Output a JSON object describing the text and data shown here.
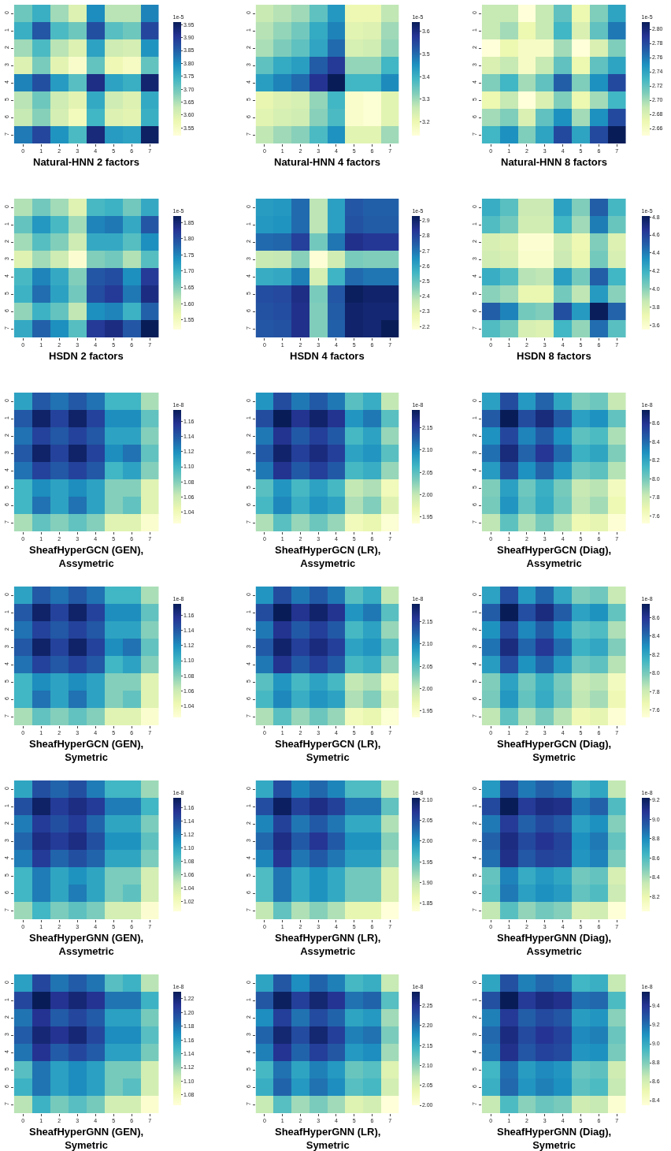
{
  "chart_data": [
    {
      "type": "heatmap",
      "title": "Natural-HNN 2 factors",
      "clabel": "1e-5",
      "categories": [
        "0",
        "1",
        "2",
        "3",
        "4",
        "5",
        "6",
        "7"
      ],
      "y_categories": [
        "0",
        "1",
        "2",
        "3",
        "4",
        "5",
        "6",
        "7"
      ],
      "clim": [
        3.52,
        3.96
      ],
      "cticks": [
        3.55,
        {
          "value": 3.6,
          "label": "3.60"
        },
        3.65,
        {
          "value": 3.7,
          "label": "3.70"
        },
        3.75,
        {
          "value": 3.8,
          "label": "3.80"
        },
        3.85,
        {
          "value": 3.9,
          "label": "3.90"
        },
        3.95
      ],
      "cells": [
        [
          3.7,
          3.75,
          3.66,
          3.6,
          3.8,
          3.64,
          3.64,
          3.81
        ],
        [
          3.75,
          3.86,
          3.73,
          3.7,
          3.87,
          3.72,
          3.7,
          3.88
        ],
        [
          3.66,
          3.73,
          3.64,
          3.6,
          3.77,
          3.62,
          3.61,
          3.79
        ],
        [
          3.6,
          3.69,
          3.59,
          3.54,
          3.71,
          3.57,
          3.55,
          3.71
        ],
        [
          3.81,
          3.87,
          3.78,
          3.72,
          3.92,
          3.77,
          3.75,
          3.94
        ],
        [
          3.64,
          3.7,
          3.62,
          3.59,
          3.76,
          3.62,
          3.6,
          3.76
        ],
        [
          3.63,
          3.68,
          3.61,
          3.56,
          3.74,
          3.6,
          3.59,
          3.75
        ],
        [
          3.82,
          3.88,
          3.79,
          3.73,
          3.93,
          3.78,
          3.77,
          3.95
        ]
      ]
    },
    {
      "type": "heatmap",
      "title": "Natural-HNN 4 factors",
      "clabel": "1e-5",
      "categories": [
        "0",
        "1",
        "2",
        "3",
        "4",
        "5",
        "6",
        "7"
      ],
      "y_categories": [
        "0",
        "1",
        "2",
        "3",
        "4",
        "5",
        "6",
        "7"
      ],
      "clim": [
        3.14,
        3.64
      ],
      "cticks": [
        3.2,
        3.3,
        3.4,
        3.5,
        3.6
      ],
      "cells": [
        [
          3.26,
          3.28,
          3.3,
          3.36,
          3.44,
          3.2,
          3.2,
          3.27
        ],
        [
          3.28,
          3.31,
          3.34,
          3.41,
          3.47,
          3.22,
          3.23,
          3.3
        ],
        [
          3.29,
          3.33,
          3.36,
          3.42,
          3.5,
          3.24,
          3.25,
          3.31
        ],
        [
          3.36,
          3.41,
          3.43,
          3.52,
          3.57,
          3.31,
          3.31,
          3.39
        ],
        [
          3.43,
          3.47,
          3.5,
          3.58,
          3.64,
          3.39,
          3.39,
          3.46
        ],
        [
          3.21,
          3.23,
          3.24,
          3.31,
          3.39,
          3.16,
          3.15,
          3.22
        ],
        [
          3.22,
          3.24,
          3.25,
          3.32,
          3.38,
          3.16,
          3.15,
          3.22
        ],
        [
          3.27,
          3.3,
          3.32,
          3.38,
          3.45,
          3.22,
          3.22,
          3.3
        ]
      ]
    },
    {
      "type": "heatmap",
      "title": "Natural-HNN 8 factors",
      "clabel": "1e-5",
      "categories": [
        "0",
        "1",
        "2",
        "3",
        "4",
        "5",
        "6",
        "7"
      ],
      "y_categories": [
        "0",
        "1",
        "2",
        "3",
        "4",
        "5",
        "6",
        "7"
      ],
      "clim": [
        2.65,
        2.81
      ],
      "cticks": [
        2.66,
        2.68,
        {
          "value": 2.7,
          "label": "2.70"
        },
        2.72,
        2.74,
        2.76,
        2.78,
        {
          "value": 2.8,
          "label": "2.80"
        }
      ],
      "cells": [
        [
          2.69,
          2.69,
          2.65,
          2.69,
          2.72,
          2.67,
          2.71,
          2.74
        ],
        [
          2.69,
          2.7,
          2.67,
          2.69,
          2.73,
          2.68,
          2.72,
          2.76
        ],
        [
          2.65,
          2.67,
          2.66,
          2.66,
          2.7,
          2.65,
          2.68,
          2.71
        ],
        [
          2.68,
          2.69,
          2.66,
          2.69,
          2.72,
          2.67,
          2.72,
          2.74
        ],
        [
          2.71,
          2.73,
          2.7,
          2.72,
          2.77,
          2.71,
          2.75,
          2.78
        ],
        [
          2.67,
          2.69,
          2.65,
          2.68,
          2.71,
          2.67,
          2.7,
          2.73
        ],
        [
          2.7,
          2.71,
          2.68,
          2.72,
          2.75,
          2.7,
          2.75,
          2.78
        ],
        [
          2.73,
          2.75,
          2.71,
          2.74,
          2.78,
          2.74,
          2.78,
          2.81
        ]
      ]
    },
    {
      "type": "heatmap",
      "title": "HSDN 2 factors",
      "clabel": "1e-5",
      "categories": [
        "0",
        "1",
        "2",
        "3",
        "4",
        "5",
        "6",
        "7"
      ],
      "y_categories": [
        "0",
        "1",
        "2",
        "3",
        "4",
        "5",
        "6",
        "7"
      ],
      "clim": [
        1.52,
        1.87
      ],
      "cticks": [
        1.55,
        {
          "value": 1.6,
          "label": "1.60"
        },
        1.65,
        {
          "value": 1.7,
          "label": "1.70"
        },
        1.75,
        {
          "value": 1.8,
          "label": "1.80"
        },
        1.85
      ],
      "cells": [
        [
          1.62,
          1.66,
          1.63,
          1.58,
          1.69,
          1.7,
          1.66,
          1.71
        ],
        [
          1.67,
          1.73,
          1.69,
          1.63,
          1.75,
          1.76,
          1.71,
          1.79
        ],
        [
          1.63,
          1.68,
          1.65,
          1.6,
          1.71,
          1.71,
          1.68,
          1.74
        ],
        [
          1.58,
          1.63,
          1.6,
          1.53,
          1.65,
          1.66,
          1.62,
          1.68
        ],
        [
          1.69,
          1.75,
          1.71,
          1.65,
          1.79,
          1.8,
          1.74,
          1.82
        ],
        [
          1.7,
          1.77,
          1.72,
          1.66,
          1.8,
          1.82,
          1.76,
          1.84
        ],
        [
          1.64,
          1.7,
          1.67,
          1.61,
          1.74,
          1.75,
          1.7,
          1.78
        ],
        [
          1.71,
          1.78,
          1.74,
          1.68,
          1.82,
          1.84,
          1.79,
          1.87
        ]
      ]
    },
    {
      "type": "heatmap",
      "title": "HSDN 4 factors",
      "clabel": "1e-5",
      "categories": [
        "0",
        "1",
        "2",
        "3",
        "4",
        "5",
        "6",
        "7"
      ],
      "y_categories": [
        "0",
        "1",
        "2",
        "3",
        "4",
        "5",
        "6",
        "7"
      ],
      "clim": [
        2.18,
        2.93
      ],
      "cticks": [
        2.2,
        2.3,
        2.4,
        2.5,
        2.6,
        2.7,
        2.8,
        2.9
      ],
      "cells": [
        [
          2.62,
          2.63,
          2.72,
          2.38,
          2.61,
          2.76,
          2.74,
          2.74
        ],
        [
          2.63,
          2.64,
          2.72,
          2.38,
          2.61,
          2.77,
          2.75,
          2.75
        ],
        [
          2.72,
          2.73,
          2.81,
          2.48,
          2.7,
          2.85,
          2.83,
          2.83
        ],
        [
          2.36,
          2.37,
          2.45,
          2.19,
          2.34,
          2.47,
          2.46,
          2.46
        ],
        [
          2.58,
          2.59,
          2.68,
          2.33,
          2.56,
          2.72,
          2.7,
          2.7
        ],
        [
          2.78,
          2.79,
          2.86,
          2.47,
          2.76,
          2.92,
          2.9,
          2.9
        ],
        [
          2.77,
          2.78,
          2.85,
          2.46,
          2.75,
          2.9,
          2.89,
          2.89
        ],
        [
          2.76,
          2.77,
          2.85,
          2.46,
          2.74,
          2.9,
          2.89,
          2.93
        ]
      ]
    },
    {
      "type": "heatmap",
      "title": "HSDN 8 factors",
      "clabel": "1e-5",
      "categories": [
        "0",
        "1",
        "2",
        "3",
        "4",
        "5",
        "6",
        "7"
      ],
      "y_categories": [
        "0",
        "1",
        "2",
        "3",
        "4",
        "5",
        "6",
        "7"
      ],
      "clim": [
        3.55,
        4.81
      ],
      "cticks": [
        3.6,
        3.8,
        {
          "value": 4.0,
          "label": "4.0"
        },
        4.2,
        4.4,
        4.6,
        4.8
      ],
      "cells": [
        [
          4.22,
          4.12,
          3.85,
          3.85,
          4.27,
          4.02,
          4.5,
          4.17
        ],
        [
          4.14,
          4.05,
          3.82,
          3.82,
          4.18,
          3.95,
          4.4,
          4.08
        ],
        [
          3.8,
          3.78,
          3.58,
          3.58,
          3.82,
          3.7,
          4.02,
          3.78
        ],
        [
          3.82,
          3.8,
          3.6,
          3.6,
          3.85,
          3.72,
          4.05,
          3.8
        ],
        [
          4.22,
          4.14,
          3.9,
          3.88,
          4.28,
          4.05,
          4.5,
          4.18
        ],
        [
          4.0,
          3.95,
          3.72,
          3.72,
          4.05,
          3.88,
          4.3,
          4.0
        ],
        [
          4.5,
          4.38,
          4.05,
          4.02,
          4.55,
          4.3,
          4.8,
          4.48
        ],
        [
          4.14,
          4.06,
          3.8,
          3.78,
          4.18,
          3.98,
          4.45,
          4.12
        ]
      ]
    },
    {
      "type": "heatmap",
      "title": "SheafHyperGCN (GEN),\nAssymetric",
      "clabel": "1e-8",
      "categories": [
        "0",
        "1",
        "2",
        "3",
        "4",
        "5",
        "6",
        "7"
      ],
      "y_categories": [
        "0",
        "1",
        "2",
        "3",
        "4",
        "5",
        "6",
        "7"
      ],
      "clim": [
        1.025,
        1.175
      ],
      "cticks": [
        1.04,
        1.06,
        1.08,
        {
          "value": 1.1,
          "label": "1.10"
        },
        1.12,
        1.14,
        1.16
      ],
      "cells": [
        [
          1.11,
          1.14,
          1.13,
          1.14,
          1.13,
          1.1,
          1.1,
          1.07
        ],
        [
          1.14,
          1.17,
          1.15,
          1.17,
          1.15,
          1.12,
          1.12,
          1.09
        ],
        [
          1.13,
          1.15,
          1.14,
          1.15,
          1.14,
          1.11,
          1.11,
          1.08
        ],
        [
          1.14,
          1.17,
          1.15,
          1.17,
          1.15,
          1.12,
          1.13,
          1.09
        ],
        [
          1.13,
          1.15,
          1.14,
          1.15,
          1.14,
          1.1,
          1.11,
          1.08
        ],
        [
          1.1,
          1.12,
          1.11,
          1.12,
          1.11,
          1.08,
          1.08,
          1.05
        ],
        [
          1.1,
          1.13,
          1.11,
          1.13,
          1.11,
          1.08,
          1.09,
          1.05
        ],
        [
          1.07,
          1.09,
          1.08,
          1.09,
          1.08,
          1.05,
          1.05,
          1.03
        ]
      ]
    },
    {
      "type": "heatmap",
      "title": "SheafHyperGCN (LR),\nAssymetric",
      "clabel": "1e-8",
      "categories": [
        "0",
        "1",
        "2",
        "3",
        "4",
        "5",
        "6",
        "7"
      ],
      "y_categories": [
        "0",
        "1",
        "2",
        "3",
        "4",
        "5",
        "6",
        "7"
      ],
      "clim": [
        1.935,
        2.19
      ],
      "cticks": [
        1.95,
        {
          "value": 2.0,
          "label": "2.00"
        },
        2.05,
        {
          "value": 2.1,
          "label": "2.10"
        },
        2.15
      ],
      "cells": [
        [
          2.09,
          2.14,
          2.11,
          2.13,
          2.11,
          2.05,
          2.07,
          2.0
        ],
        [
          2.14,
          2.19,
          2.16,
          2.18,
          2.16,
          2.09,
          2.11,
          2.05
        ],
        [
          2.11,
          2.16,
          2.13,
          2.15,
          2.13,
          2.06,
          2.08,
          2.02
        ],
        [
          2.13,
          2.18,
          2.15,
          2.17,
          2.15,
          2.08,
          2.09,
          2.05
        ],
        [
          2.11,
          2.16,
          2.13,
          2.15,
          2.13,
          2.06,
          2.07,
          2.02
        ],
        [
          2.05,
          2.09,
          2.06,
          2.08,
          2.06,
          2.0,
          2.01,
          1.96
        ],
        [
          2.06,
          2.1,
          2.07,
          2.09,
          2.08,
          2.01,
          2.03,
          1.98
        ],
        [
          2.01,
          2.05,
          2.02,
          2.04,
          2.02,
          1.96,
          1.97,
          1.94
        ]
      ]
    },
    {
      "type": "heatmap",
      "title": "SheafHyperGCN (Diag),\nAssymetric",
      "clabel": "1e-8",
      "categories": [
        "0",
        "1",
        "2",
        "3",
        "4",
        "5",
        "6",
        "7"
      ],
      "y_categories": [
        "0",
        "1",
        "2",
        "3",
        "4",
        "5",
        "6",
        "7"
      ],
      "clim": [
        7.52,
        8.74
      ],
      "cticks": [
        7.6,
        7.8,
        {
          "value": 8.0,
          "label": "8.0"
        },
        8.2,
        8.4,
        8.6
      ],
      "cells": [
        [
          8.22,
          8.5,
          8.25,
          8.42,
          8.2,
          7.98,
          8.02,
          7.82
        ],
        [
          8.45,
          8.74,
          8.5,
          8.65,
          8.45,
          8.22,
          8.28,
          8.05
        ],
        [
          8.28,
          8.52,
          8.32,
          8.45,
          8.28,
          8.06,
          8.1,
          7.88
        ],
        [
          8.38,
          8.65,
          8.42,
          8.58,
          8.4,
          8.15,
          8.2,
          7.98
        ],
        [
          8.24,
          8.5,
          8.28,
          8.42,
          8.25,
          8.02,
          8.06,
          7.86
        ],
        [
          7.98,
          8.22,
          8.02,
          8.16,
          8.0,
          7.82,
          7.85,
          7.62
        ],
        [
          8.0,
          8.26,
          8.05,
          8.18,
          8.02,
          7.84,
          7.9,
          7.66
        ],
        [
          7.84,
          8.06,
          7.88,
          8.0,
          7.86,
          7.66,
          7.7,
          7.54
        ]
      ]
    },
    {
      "type": "heatmap",
      "title": "SheafHyperGCN (GEN),\nSymetric",
      "clabel": "1e-8",
      "categories": [
        "0",
        "1",
        "2",
        "3",
        "4",
        "5",
        "6",
        "7"
      ],
      "y_categories": [
        "0",
        "1",
        "2",
        "3",
        "4",
        "5",
        "6",
        "7"
      ],
      "clim": [
        1.025,
        1.175
      ],
      "cticks": [
        1.04,
        1.06,
        1.08,
        {
          "value": 1.1,
          "label": "1.10"
        },
        1.12,
        1.14,
        1.16
      ],
      "cells": [
        [
          1.11,
          1.14,
          1.13,
          1.14,
          1.13,
          1.1,
          1.1,
          1.07
        ],
        [
          1.14,
          1.17,
          1.15,
          1.17,
          1.15,
          1.12,
          1.12,
          1.09
        ],
        [
          1.13,
          1.15,
          1.14,
          1.15,
          1.14,
          1.11,
          1.11,
          1.08
        ],
        [
          1.14,
          1.17,
          1.15,
          1.17,
          1.15,
          1.12,
          1.13,
          1.09
        ],
        [
          1.13,
          1.15,
          1.14,
          1.15,
          1.14,
          1.1,
          1.11,
          1.08
        ],
        [
          1.1,
          1.12,
          1.11,
          1.12,
          1.11,
          1.08,
          1.08,
          1.05
        ],
        [
          1.1,
          1.13,
          1.11,
          1.13,
          1.11,
          1.08,
          1.09,
          1.05
        ],
        [
          1.07,
          1.09,
          1.08,
          1.09,
          1.08,
          1.05,
          1.05,
          1.03
        ]
      ]
    },
    {
      "type": "heatmap",
      "title": "SheafHyperGCN (LR),\nSymetric",
      "clabel": "1e-8",
      "categories": [
        "0",
        "1",
        "2",
        "3",
        "4",
        "5",
        "6",
        "7"
      ],
      "y_categories": [
        "0",
        "1",
        "2",
        "3",
        "4",
        "5",
        "6",
        "7"
      ],
      "clim": [
        1.935,
        2.19
      ],
      "cticks": [
        1.95,
        {
          "value": 2.0,
          "label": "2.00"
        },
        2.05,
        {
          "value": 2.1,
          "label": "2.10"
        },
        2.15
      ],
      "cells": [
        [
          2.09,
          2.14,
          2.11,
          2.13,
          2.11,
          2.05,
          2.07,
          2.0
        ],
        [
          2.14,
          2.19,
          2.16,
          2.18,
          2.16,
          2.09,
          2.11,
          2.05
        ],
        [
          2.11,
          2.16,
          2.13,
          2.15,
          2.13,
          2.06,
          2.08,
          2.02
        ],
        [
          2.13,
          2.18,
          2.15,
          2.17,
          2.15,
          2.08,
          2.09,
          2.05
        ],
        [
          2.11,
          2.16,
          2.13,
          2.15,
          2.13,
          2.06,
          2.07,
          2.02
        ],
        [
          2.05,
          2.09,
          2.06,
          2.08,
          2.06,
          2.0,
          2.01,
          1.96
        ],
        [
          2.06,
          2.1,
          2.07,
          2.09,
          2.08,
          2.01,
          2.03,
          1.98
        ],
        [
          2.01,
          2.05,
          2.02,
          2.04,
          2.02,
          1.96,
          1.97,
          1.94
        ]
      ]
    },
    {
      "type": "heatmap",
      "title": "SheafHyperGCN (Diag),\nSymetric",
      "clabel": "1e-8",
      "categories": [
        "0",
        "1",
        "2",
        "3",
        "4",
        "5",
        "6",
        "7"
      ],
      "y_categories": [
        "0",
        "1",
        "2",
        "3",
        "4",
        "5",
        "6",
        "7"
      ],
      "clim": [
        7.52,
        8.75
      ],
      "cticks": [
        7.6,
        7.8,
        {
          "value": 8.0,
          "label": "8.0"
        },
        8.2,
        8.4,
        8.6
      ],
      "cells": [
        [
          8.22,
          8.5,
          8.25,
          8.42,
          8.2,
          7.98,
          8.02,
          7.82
        ],
        [
          8.45,
          8.75,
          8.5,
          8.65,
          8.45,
          8.22,
          8.28,
          8.05
        ],
        [
          8.28,
          8.52,
          8.32,
          8.45,
          8.28,
          8.06,
          8.1,
          7.88
        ],
        [
          8.38,
          8.65,
          8.42,
          8.58,
          8.4,
          8.15,
          8.2,
          7.98
        ],
        [
          8.24,
          8.5,
          8.28,
          8.42,
          8.25,
          8.02,
          8.06,
          7.86
        ],
        [
          7.98,
          8.22,
          8.02,
          8.16,
          8.0,
          7.82,
          7.85,
          7.62
        ],
        [
          8.0,
          8.26,
          8.05,
          8.18,
          8.02,
          7.84,
          7.9,
          7.66
        ],
        [
          7.84,
          8.06,
          7.88,
          8.0,
          7.86,
          7.66,
          7.7,
          7.54
        ]
      ]
    },
    {
      "type": "heatmap",
      "title": "SheafHyperGNN (GEN),\nAssymetric",
      "clabel": "1e-8",
      "categories": [
        "0",
        "1",
        "2",
        "3",
        "4",
        "5",
        "6",
        "7"
      ],
      "y_categories": [
        "0",
        "1",
        "2",
        "3",
        "4",
        "5",
        "6",
        "7"
      ],
      "clim": [
        1.005,
        1.175
      ],
      "cticks": [
        1.02,
        1.04,
        1.06,
        1.08,
        {
          "value": 1.1,
          "label": "1.10"
        },
        1.12,
        1.14,
        1.16
      ],
      "cells": [
        [
          1.1,
          1.14,
          1.13,
          1.14,
          1.12,
          1.09,
          1.09,
          1.06
        ],
        [
          1.14,
          1.17,
          1.15,
          1.16,
          1.15,
          1.12,
          1.12,
          1.09
        ],
        [
          1.12,
          1.15,
          1.14,
          1.15,
          1.13,
          1.1,
          1.1,
          1.07
        ],
        [
          1.13,
          1.16,
          1.15,
          1.16,
          1.14,
          1.11,
          1.11,
          1.08
        ],
        [
          1.12,
          1.15,
          1.13,
          1.14,
          1.13,
          1.1,
          1.1,
          1.07
        ],
        [
          1.09,
          1.12,
          1.1,
          1.11,
          1.1,
          1.07,
          1.07,
          1.04
        ],
        [
          1.09,
          1.12,
          1.1,
          1.12,
          1.1,
          1.07,
          1.08,
          1.04
        ],
        [
          1.06,
          1.09,
          1.07,
          1.08,
          1.07,
          1.04,
          1.04,
          1.01
        ]
      ]
    },
    {
      "type": "heatmap",
      "title": "SheafHyperGNN (LR),\nAssymetric",
      "clabel": "1e-8",
      "categories": [
        "0",
        "1",
        "2",
        "3",
        "4",
        "5",
        "6",
        "7"
      ],
      "y_categories": [
        "0",
        "1",
        "2",
        "3",
        "4",
        "5",
        "6",
        "7"
      ],
      "clim": [
        1.83,
        2.105
      ],
      "cticks": [
        1.85,
        {
          "value": 1.9,
          "label": "1.90"
        },
        1.95,
        {
          "value": 2.0,
          "label": "2.00"
        },
        2.05,
        {
          "value": 2.1,
          "label": "2.10"
        }
      ],
      "cells": [
        [
          1.98,
          2.05,
          2.01,
          2.03,
          2.01,
          1.96,
          1.96,
          1.9
        ],
        [
          2.05,
          2.1,
          2.06,
          2.08,
          2.06,
          2.02,
          2.02,
          1.95
        ],
        [
          2.01,
          2.06,
          2.02,
          2.04,
          2.02,
          1.98,
          1.98,
          1.91
        ],
        [
          2.03,
          2.08,
          2.04,
          2.07,
          2.04,
          2.0,
          2.0,
          1.93
        ],
        [
          2.01,
          2.07,
          2.02,
          2.04,
          2.02,
          1.99,
          1.99,
          1.92
        ],
        [
          1.96,
          2.02,
          1.98,
          2.0,
          1.98,
          1.94,
          1.94,
          1.88
        ],
        [
          1.96,
          2.02,
          1.98,
          2.0,
          1.98,
          1.94,
          1.94,
          1.88
        ],
        [
          1.9,
          1.95,
          1.91,
          1.93,
          1.91,
          1.87,
          1.87,
          1.83
        ]
      ]
    },
    {
      "type": "heatmap",
      "title": "SheafHyperGNN (Diag),\nAssymetric",
      "clabel": "1e-8",
      "categories": [
        "0",
        "1",
        "2",
        "3",
        "4",
        "5",
        "6",
        "7"
      ],
      "y_categories": [
        "0",
        "1",
        "2",
        "3",
        "4",
        "5",
        "6",
        "7"
      ],
      "clim": [
        8.05,
        9.22
      ],
      "cticks": [
        8.2,
        8.4,
        8.6,
        8.8,
        {
          "value": 9.0,
          "label": "9.0"
        },
        9.2
      ],
      "cells": [
        [
          8.75,
          9.0,
          8.85,
          8.92,
          8.88,
          8.62,
          8.7,
          8.35
        ],
        [
          9.0,
          9.22,
          9.05,
          9.12,
          9.1,
          8.85,
          8.92,
          8.6
        ],
        [
          8.85,
          9.05,
          8.92,
          9.0,
          8.95,
          8.72,
          8.78,
          8.48
        ],
        [
          8.92,
          9.12,
          9.0,
          9.08,
          9.02,
          8.78,
          8.85,
          8.55
        ],
        [
          8.88,
          9.1,
          8.95,
          9.02,
          9.0,
          8.76,
          8.82,
          8.5
        ],
        [
          8.55,
          8.82,
          8.68,
          8.75,
          8.7,
          8.52,
          8.55,
          8.28
        ],
        [
          8.58,
          8.85,
          8.72,
          8.78,
          8.74,
          8.55,
          8.6,
          8.32
        ],
        [
          8.35,
          8.58,
          8.45,
          8.52,
          8.48,
          8.28,
          8.3,
          8.06
        ]
      ]
    },
    {
      "type": "heatmap",
      "title": "SheafHyperGNN (GEN),\nSymetric",
      "clabel": "1e-8",
      "categories": [
        "0",
        "1",
        "2",
        "3",
        "4",
        "5",
        "6",
        "7"
      ],
      "y_categories": [
        "0",
        "1",
        "2",
        "3",
        "4",
        "5",
        "6",
        "7"
      ],
      "clim": [
        1.065,
        1.23
      ],
      "cticks": [
        1.08,
        {
          "value": 1.1,
          "label": "1.10"
        },
        1.12,
        1.14,
        1.16,
        1.18,
        {
          "value": 1.2,
          "label": "1.20"
        },
        1.22
      ],
      "cells": [
        [
          1.16,
          1.2,
          1.18,
          1.19,
          1.18,
          1.14,
          1.15,
          1.11
        ],
        [
          1.2,
          1.23,
          1.21,
          1.22,
          1.21,
          1.18,
          1.18,
          1.15
        ],
        [
          1.18,
          1.21,
          1.19,
          1.2,
          1.19,
          1.16,
          1.16,
          1.13
        ],
        [
          1.19,
          1.22,
          1.21,
          1.22,
          1.2,
          1.17,
          1.17,
          1.14
        ],
        [
          1.18,
          1.21,
          1.19,
          1.2,
          1.19,
          1.16,
          1.16,
          1.13
        ],
        [
          1.14,
          1.18,
          1.16,
          1.17,
          1.16,
          1.13,
          1.13,
          1.1
        ],
        [
          1.15,
          1.18,
          1.16,
          1.17,
          1.16,
          1.13,
          1.14,
          1.1
        ],
        [
          1.11,
          1.15,
          1.13,
          1.14,
          1.13,
          1.1,
          1.1,
          1.07
        ]
      ]
    },
    {
      "type": "heatmap",
      "title": "SheafHyperGNN (LR),\nSymetric",
      "clabel": "1e-8",
      "categories": [
        "0",
        "1",
        "2",
        "3",
        "4",
        "5",
        "6",
        "7"
      ],
      "y_categories": [
        "0",
        "1",
        "2",
        "3",
        "4",
        "5",
        "6",
        "7"
      ],
      "clim": [
        2.0,
        2.285
      ],
      "cticks": [
        {
          "value": 2.0,
          "label": "2.00"
        },
        2.05,
        {
          "value": 2.1,
          "label": "2.10"
        },
        2.15,
        {
          "value": 2.2,
          "label": "2.20"
        },
        2.25
      ],
      "cells": [
        [
          2.16,
          2.22,
          2.18,
          2.21,
          2.19,
          2.14,
          2.15,
          2.07
        ],
        [
          2.22,
          2.28,
          2.24,
          2.27,
          2.25,
          2.2,
          2.21,
          2.13
        ],
        [
          2.18,
          2.24,
          2.2,
          2.23,
          2.21,
          2.16,
          2.17,
          2.09
        ],
        [
          2.21,
          2.27,
          2.23,
          2.27,
          2.24,
          2.19,
          2.2,
          2.11
        ],
        [
          2.19,
          2.25,
          2.21,
          2.24,
          2.22,
          2.17,
          2.18,
          2.09
        ],
        [
          2.14,
          2.2,
          2.16,
          2.19,
          2.17,
          2.12,
          2.13,
          2.05
        ],
        [
          2.15,
          2.21,
          2.17,
          2.2,
          2.18,
          2.13,
          2.14,
          2.06
        ],
        [
          2.07,
          2.13,
          2.09,
          2.11,
          2.09,
          2.05,
          2.06,
          2.0
        ]
      ]
    },
    {
      "type": "heatmap",
      "title": "SheafHyperGNN (Diag),\nSymetric",
      "clabel": "1e-8",
      "categories": [
        "0",
        "1",
        "2",
        "3",
        "4",
        "5",
        "6",
        "7"
      ],
      "y_categories": [
        "0",
        "1",
        "2",
        "3",
        "4",
        "5",
        "6",
        "7"
      ],
      "clim": [
        8.35,
        9.55
      ],
      "cticks": [
        8.4,
        8.6,
        8.8,
        {
          "value": 9.0,
          "label": "9.0"
        },
        9.2,
        9.4
      ],
      "cells": [
        [
          9.02,
          9.3,
          9.15,
          9.22,
          9.18,
          8.95,
          8.98,
          8.65
        ],
        [
          9.3,
          9.55,
          9.38,
          9.45,
          9.42,
          9.2,
          9.22,
          8.92
        ],
        [
          9.15,
          9.38,
          9.25,
          9.32,
          9.28,
          9.05,
          9.08,
          8.78
        ],
        [
          9.22,
          9.45,
          9.32,
          9.4,
          9.35,
          9.12,
          9.15,
          8.85
        ],
        [
          9.18,
          9.42,
          9.28,
          9.35,
          9.32,
          9.08,
          9.1,
          8.82
        ],
        [
          8.95,
          9.2,
          9.05,
          9.12,
          9.08,
          8.85,
          8.88,
          8.62
        ],
        [
          8.98,
          9.22,
          9.08,
          9.15,
          9.1,
          8.88,
          8.92,
          8.65
        ],
        [
          8.65,
          8.92,
          8.78,
          8.85,
          8.82,
          8.62,
          8.65,
          8.38
        ]
      ]
    }
  ]
}
